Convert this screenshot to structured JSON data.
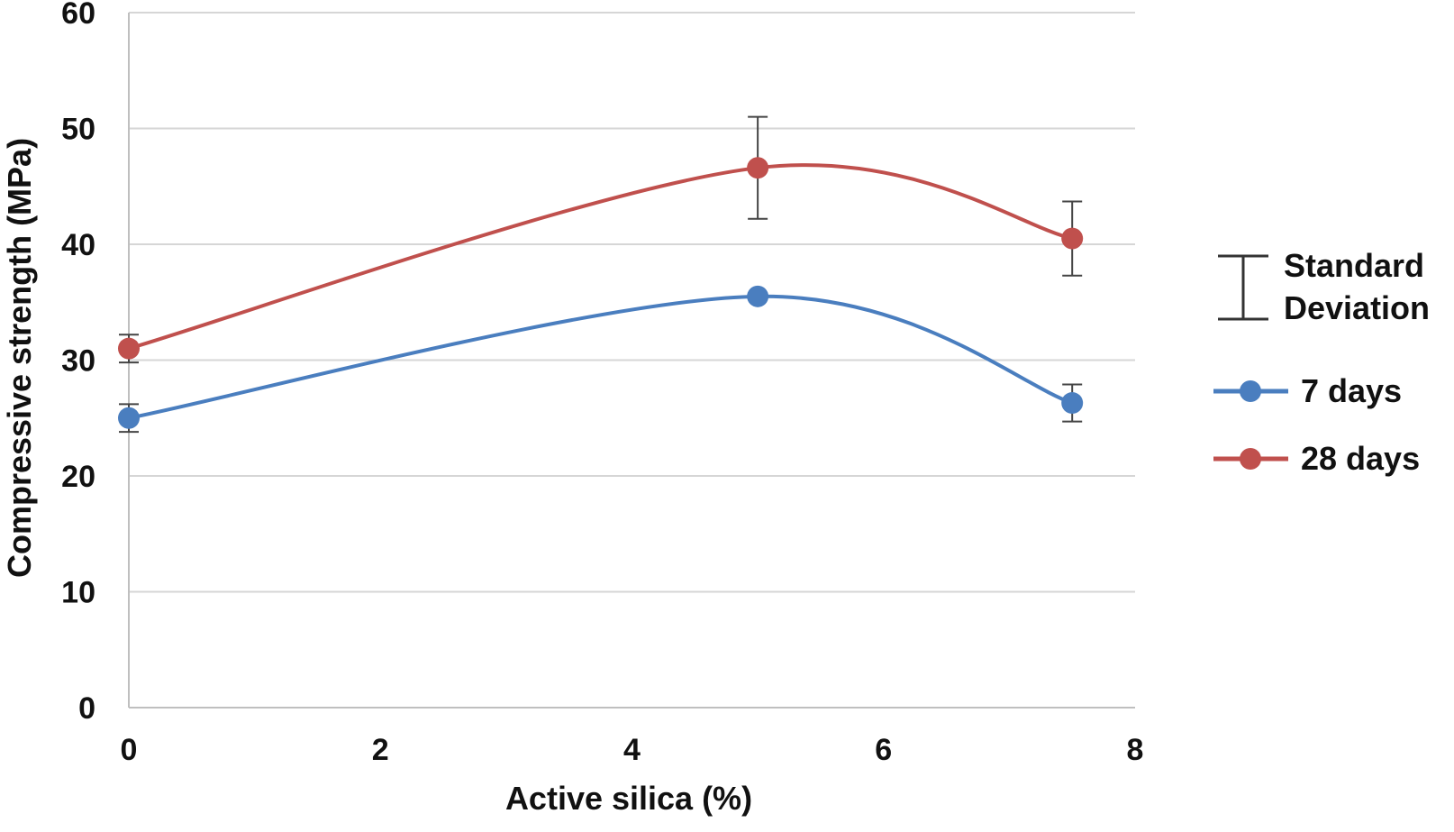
{
  "chart_data": {
    "type": "line",
    "title": "",
    "xlabel": "Active silica (%)",
    "ylabel": "Compressive strength (MPa)",
    "xlim": [
      0,
      8
    ],
    "ylim": [
      0,
      60
    ],
    "x_ticks": [
      0,
      2,
      4,
      6,
      8
    ],
    "y_ticks": [
      0,
      10,
      20,
      30,
      40,
      50,
      60
    ],
    "x_tick_labels": [
      "0",
      "2",
      "4",
      "6",
      "8"
    ],
    "y_tick_labels": [
      "0",
      "10",
      "20",
      "30",
      "40",
      "50",
      "60"
    ],
    "grid": "horizontal",
    "legend_position": "right",
    "error_bar_legend": [
      "Standard",
      "Deviation"
    ],
    "series": [
      {
        "name": "7 days",
        "color": "#4a7ebf",
        "x": [
          0,
          5,
          7.5
        ],
        "y": [
          25,
          35.5,
          26.3
        ],
        "error": [
          1.2,
          0,
          1.6
        ]
      },
      {
        "name": "28 days",
        "color": "#c0504d",
        "x": [
          0,
          5,
          7.5
        ],
        "y": [
          31,
          46.6,
          40.5
        ],
        "error": [
          1.2,
          4.4,
          3.2
        ]
      }
    ]
  }
}
